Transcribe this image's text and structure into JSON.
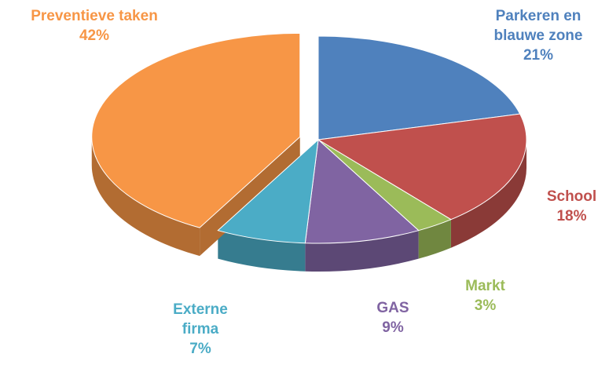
{
  "chart_data": {
    "type": "pie",
    "categories": [
      "Parkeren en blauwe zone",
      "School",
      "Markt",
      "GAS",
      "Externe firma",
      "Preventieve taken"
    ],
    "values": [
      21,
      18,
      3,
      9,
      7,
      42
    ],
    "value_labels": [
      "21%",
      "18%",
      "3%",
      "9%",
      "7%",
      "42%"
    ],
    "colors": [
      "#4f81bd",
      "#c0504d",
      "#9bbb59",
      "#8064a2",
      "#4bacc6",
      "#f79646"
    ],
    "exploded": "Preventieve taken"
  }
}
